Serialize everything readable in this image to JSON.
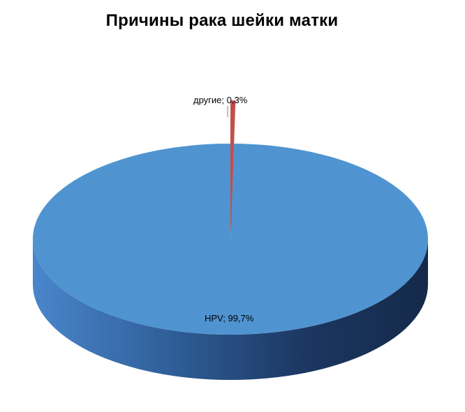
{
  "chart_data": {
    "type": "pie",
    "title": "Причины рака шейки матки",
    "slices": [
      {
        "label": "HPV",
        "value": 99.7,
        "display": "HPV; 99,7%",
        "color": "#4f94d0"
      },
      {
        "label": "другие",
        "value": 0.3,
        "display": "другие; 0,3%",
        "color": "#c0504d"
      }
    ],
    "style": "3d-pie",
    "legend": "none"
  }
}
